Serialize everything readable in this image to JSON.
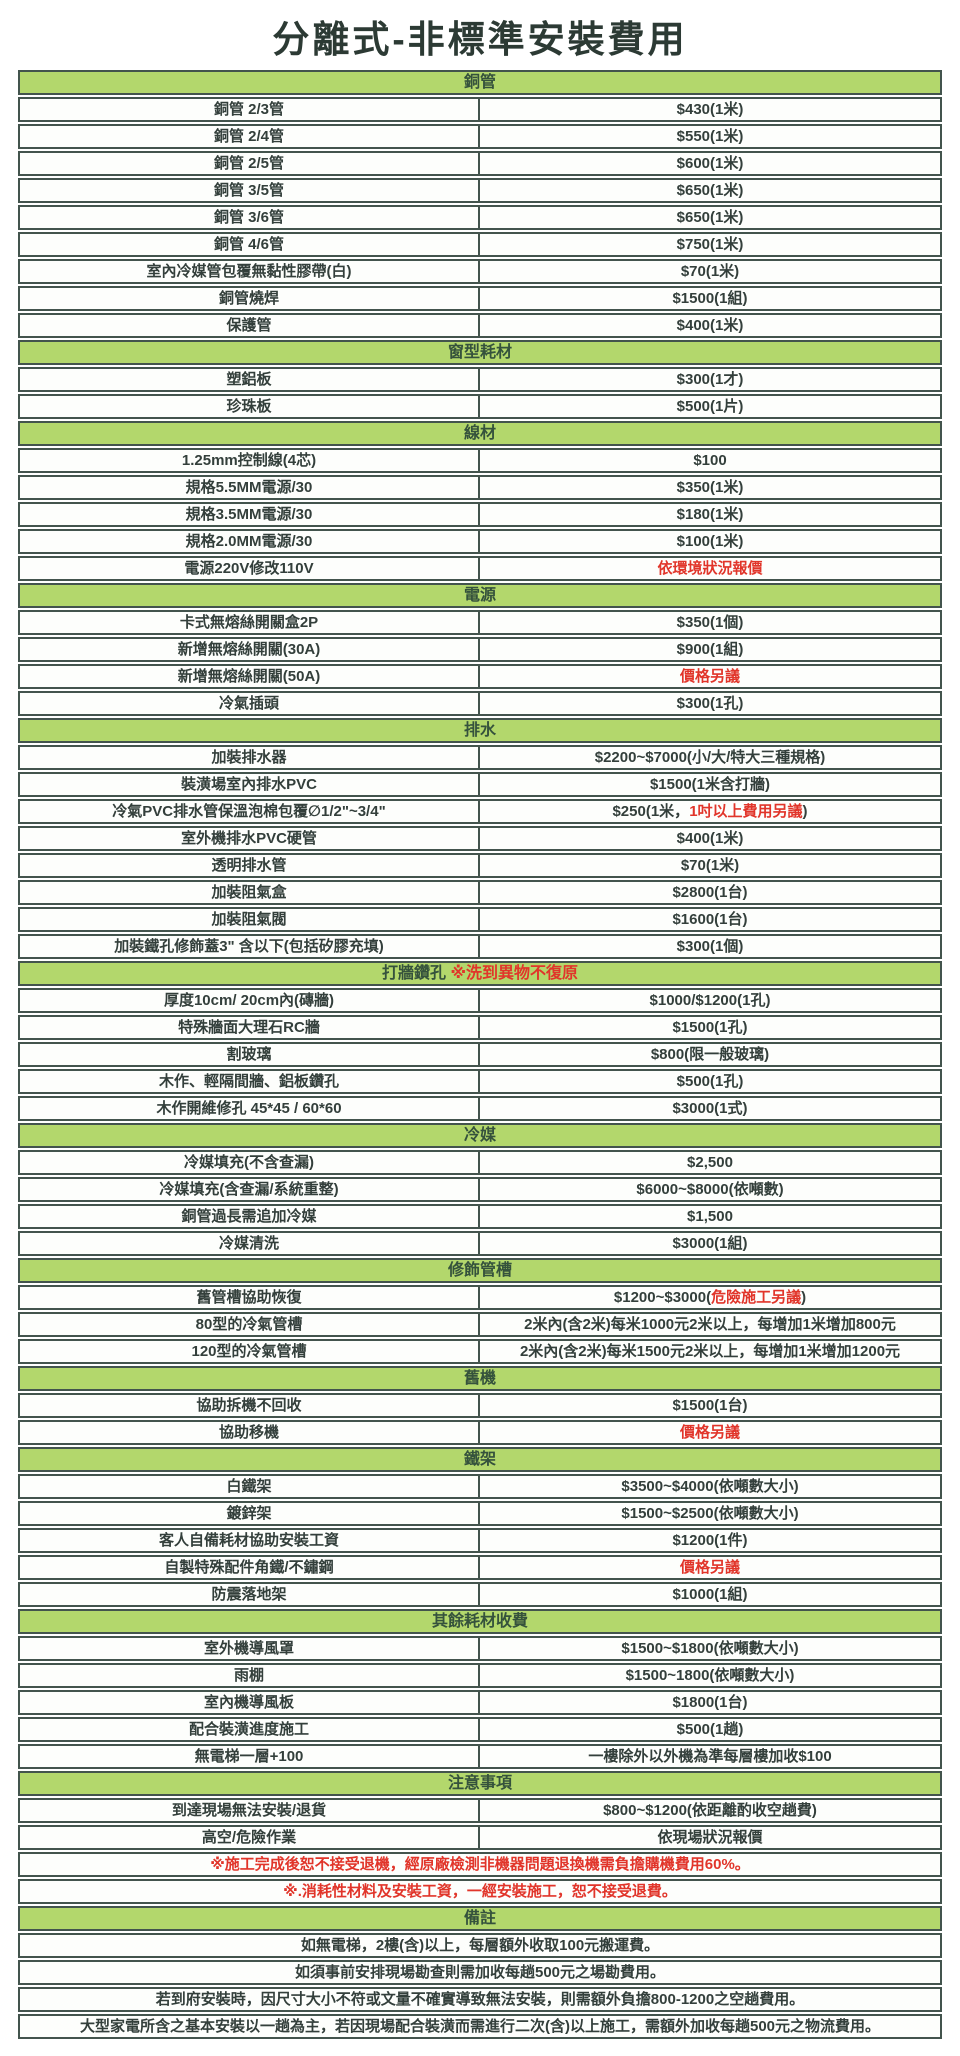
{
  "title": "分離式-非標準安裝費用",
  "colors": {
    "section_header_bg": "#b3d76c",
    "border": "#43544d",
    "text": "#333f3b",
    "red_accent": "#e1352a"
  },
  "sections": [
    {
      "header": "銅管",
      "rows": [
        {
          "label": "銅管 2/3管",
          "value": "$430(1米)"
        },
        {
          "label": "銅管 2/4管",
          "value": "$550(1米)"
        },
        {
          "label": "銅管 2/5管",
          "value": "$600(1米)"
        },
        {
          "label": "銅管 3/5管",
          "value": "$650(1米)"
        },
        {
          "label": "銅管 3/6管",
          "value": "$650(1米)"
        },
        {
          "label": "銅管 4/6管",
          "value": "$750(1米)"
        },
        {
          "label": "室內冷媒管包覆無黏性膠帶(白)",
          "value": "$70(1米)"
        },
        {
          "label": "銅管燒焊",
          "value": "$1500(1組)"
        },
        {
          "label": "保護管",
          "value": "$400(1米)"
        }
      ]
    },
    {
      "header": "窗型耗材",
      "rows": [
        {
          "label": "塑鋁板",
          "value": "$300(1才)"
        },
        {
          "label": "珍珠板",
          "value": "$500(1片)"
        }
      ]
    },
    {
      "header": "線材",
      "rows": [
        {
          "label": "1.25mm控制線(4芯)",
          "value": "$100"
        },
        {
          "label": "規格5.5MM電源/30",
          "value": "$350(1米)"
        },
        {
          "label": "規格3.5MM電源/30",
          "value": "$180(1米)"
        },
        {
          "label": "規格2.0MM電源/30",
          "value": "$100(1米)"
        },
        {
          "label": "電源220V修改110V",
          "value": "依環境狀況報價",
          "red": true
        }
      ]
    },
    {
      "header": "電源",
      "rows": [
        {
          "label": "卡式無熔絲開關盒2P",
          "value": "$350(1個)"
        },
        {
          "label": "新增無熔絲開關(30A)",
          "value": "$900(1組)"
        },
        {
          "label": "新增無熔絲開關(50A)",
          "value": "價格另議",
          "red": true
        },
        {
          "label": "冷氣插頭",
          "value": "$300(1孔)"
        }
      ]
    },
    {
      "header": "排水",
      "rows": [
        {
          "label": "加裝排水器",
          "value": "$2200~$7000(小/大/特大三種規格)"
        },
        {
          "label": "裝潢場室內排水PVC",
          "value": "$1500(1米含打牆)"
        },
        {
          "label": "冷氣PVC排水管保溫泡棉包覆∅1/2\"~3/4\"",
          "value": [
            {
              "t": "$250(1米，"
            },
            {
              "t": "1吋以上費用另議",
              "red": true
            },
            {
              "t": ")"
            }
          ]
        },
        {
          "label": "室外機排水PVC硬管",
          "value": "$400(1米)"
        },
        {
          "label": "透明排水管",
          "value": "$70(1米)"
        },
        {
          "label": "加裝阻氣盒",
          "value": "$2800(1台)"
        },
        {
          "label": "加裝阻氣閥",
          "value": "$1600(1台)"
        },
        {
          "label": "加裝鐵孔修飾蓋3\" 含以下(包括矽膠充填)",
          "value": "$300(1個)"
        }
      ]
    },
    {
      "header": [
        {
          "t": "打牆鑽孔 "
        },
        {
          "t": "※洗到異物不復原",
          "red": true
        }
      ],
      "rows": [
        {
          "label": "厚度10cm/ 20cm內(磚牆)",
          "value": "$1000/$1200(1孔)"
        },
        {
          "label": "特殊牆面大理石RC牆",
          "value": "$1500(1孔)"
        },
        {
          "label": "割玻璃",
          "value": "$800(限一般玻璃)"
        },
        {
          "label": "木作、輕隔間牆、鋁板鑽孔",
          "value": "$500(1孔)"
        },
        {
          "label": "木作開維修孔 45*45 / 60*60",
          "value": "$3000(1式)"
        }
      ]
    },
    {
      "header": "冷媒",
      "rows": [
        {
          "label": "冷媒填充(不含查漏)",
          "value": "$2,500"
        },
        {
          "label": "冷媒填充(含查漏/系統重整)",
          "value": "$6000~$8000(依噸數)"
        },
        {
          "label": "銅管過長需追加冷媒",
          "value": "$1,500"
        },
        {
          "label": "冷媒清洗",
          "value": "$3000(1組)"
        }
      ]
    },
    {
      "header": "修飾管槽",
      "rows": [
        {
          "label": "舊管槽協助恢復",
          "value": [
            {
              "t": "$1200~$3000("
            },
            {
              "t": "危險施工另議",
              "red": true
            },
            {
              "t": ")"
            }
          ]
        },
        {
          "label": "80型的冷氣管槽",
          "value": "2米內(含2米)每米1000元2米以上，每增加1米增加800元"
        },
        {
          "label": "120型的冷氣管槽",
          "value": "2米內(含2米)每米1500元2米以上，每增加1米增加1200元"
        }
      ]
    },
    {
      "header": "舊機",
      "rows": [
        {
          "label": "協助拆機不回收",
          "value": "$1500(1台)"
        },
        {
          "label": "協助移機",
          "value": "價格另議",
          "red": true
        }
      ]
    },
    {
      "header": "鐵架",
      "rows": [
        {
          "label": "白鐵架",
          "value": "$3500~$4000(依噸數大小)"
        },
        {
          "label": "鍍鋅架",
          "value": "$1500~$2500(依噸數大小)"
        },
        {
          "label": "客人自備耗材協助安裝工資",
          "value": "$1200(1件)"
        },
        {
          "label": "自製特殊配件角鐵/不鏽鋼",
          "value": "價格另議",
          "red": true
        },
        {
          "label": "防震落地架",
          "value": "$1000(1組)"
        }
      ]
    },
    {
      "header": "其餘耗材收費",
      "rows": [
        {
          "label": "室外機導風罩",
          "value": "$1500~$1800(依噸數大小)"
        },
        {
          "label": "雨棚",
          "value": "$1500~1800(依噸數大小)"
        },
        {
          "label": "室內機導風板",
          "value": "$1800(1台)"
        },
        {
          "label": "配合裝潢進度施工",
          "value": "$500(1趟)"
        },
        {
          "label": "無電梯一層+100",
          "value": "一樓除外以外機為準每層樓加收$100"
        }
      ]
    },
    {
      "header": "注意事項",
      "rows": [
        {
          "label": "到達現場無法安裝/退貨",
          "value": "$800~$1200(依距離酌收空趟費)"
        },
        {
          "label": "高空/危險作業",
          "value": "依現場狀況報價"
        },
        {
          "full": "※施工完成後恕不接受退機，經原廠檢測非機器問題退換機需負擔購機費用60%。",
          "red": true
        },
        {
          "full": "※.消耗性材料及安裝工資，一經安裝施工，恕不接受退費。",
          "red": true
        }
      ]
    },
    {
      "header": "備註",
      "rows": [
        {
          "full": "如無電梯，2樓(含)以上，每層額外收取100元搬運費。"
        },
        {
          "full": "如須事前安排現場勘查則需加收每趟500元之場勘費用。"
        },
        {
          "full": "若到府安裝時，因尺寸大小不符或文量不確實導致無法安裝，則需額外負擔800-1200之空趟費用。"
        },
        {
          "full": "大型家電所含之基本安裝以一趟為主，若因現場配合裝潢而需進行二次(含)以上施工，需額外加收每趟500元之物流費用。"
        }
      ]
    }
  ]
}
